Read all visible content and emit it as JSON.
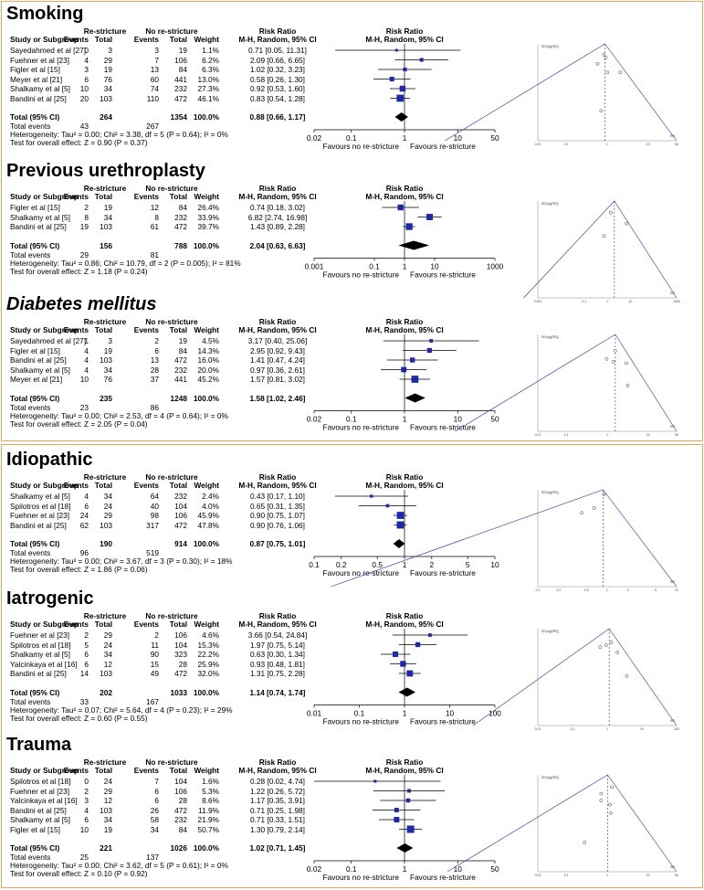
{
  "headers": {
    "study": "Study or Subgroup",
    "re_group": "Re-stricture",
    "no_group": "No re-stricture",
    "events": "Events",
    "total": "Total",
    "weight": "Weight",
    "rr_title": "Risk Ratio",
    "rr_method": "M-H, Random, 95% CI",
    "total_row": "Total (95% CI)",
    "total_events": "Total events",
    "favours_left": "Favours no re-stricture",
    "favours_right": "Favours re-stricture",
    "funnel_ylabel": "SE(log[RR])",
    "funnel_xlabel": "RR"
  },
  "colors": {
    "study_box": "#1f28a8",
    "diamond": "#000000",
    "frame": "#e7a65a",
    "funnel_line": "#2233aa"
  },
  "chart_data": [
    {
      "type": "forest",
      "title": "Smoking",
      "xscale": "log",
      "xticks": [
        "0.02",
        "0.1",
        "1",
        "10",
        "50"
      ],
      "studies": [
        {
          "study": "Sayedahmed et al [27]",
          "re_events": "0",
          "re_total": "3",
          "no_events": "3",
          "no_total": "19",
          "weight": "1.1%",
          "rr_text": "0.71 [0.05, 11.31]",
          "rr": 0.71,
          "lo": 0.05,
          "hi": 11.31
        },
        {
          "study": "Fuehner et al [23]",
          "re_events": "4",
          "re_total": "29",
          "no_events": "7",
          "no_total": "106",
          "weight": "6.2%",
          "rr_text": "2.09 [0.66, 6.65]",
          "rr": 2.09,
          "lo": 0.66,
          "hi": 6.65
        },
        {
          "study": "Figler et al [15]",
          "re_events": "3",
          "re_total": "19",
          "no_events": "13",
          "no_total": "84",
          "weight": "6.3%",
          "rr_text": "1.02 [0.32, 3.23]",
          "rr": 1.02,
          "lo": 0.32,
          "hi": 3.23
        },
        {
          "study": "Meyer et al [21]",
          "re_events": "6",
          "re_total": "76",
          "no_events": "60",
          "no_total": "441",
          "weight": "13.0%",
          "rr_text": "0.58 [0.26, 1.30]",
          "rr": 0.58,
          "lo": 0.26,
          "hi": 1.3
        },
        {
          "study": "Shalkamy et al [5]",
          "re_events": "10",
          "re_total": "34",
          "no_events": "74",
          "no_total": "232",
          "weight": "27.3%",
          "rr_text": "0.92 [0.53, 1.60]",
          "rr": 0.92,
          "lo": 0.53,
          "hi": 1.6
        },
        {
          "study": "Bandini et al [25]",
          "re_events": "20",
          "re_total": "103",
          "no_events": "110",
          "no_total": "472",
          "weight": "46.1%",
          "rr_text": "0.83 [0.54, 1.28]",
          "rr": 0.83,
          "lo": 0.54,
          "hi": 1.28
        }
      ],
      "total": {
        "re_total": "264",
        "no_total": "1354",
        "weight": "100.0%",
        "rr_text": "0.88 [0.66, 1.17]",
        "rr": 0.88,
        "lo": 0.66,
        "hi": 1.17
      },
      "total_events": {
        "re": "43",
        "no": "267"
      },
      "heterogeneity": "Heterogeneity: Tau² = 0.00; Chi² = 3.38, df = 5 (P = 0.64); I² = 0%",
      "overall_effect": "Test for overall effect: Z = 0.90 (P = 0.37)"
    },
    {
      "type": "forest",
      "title": "Previous urethroplasty",
      "xscale": "log",
      "xticks": [
        "0.001",
        "0.1",
        "1",
        "10",
        "1000"
      ],
      "studies": [
        {
          "study": "Figler et al [15]",
          "re_events": "2",
          "re_total": "19",
          "no_events": "12",
          "no_total": "84",
          "weight": "26.4%",
          "rr_text": "0.74 [0.18, 3.02]",
          "rr": 0.74,
          "lo": 0.18,
          "hi": 3.02
        },
        {
          "study": "Shalkamy et al [5]",
          "re_events": "8",
          "re_total": "34",
          "no_events": "8",
          "no_total": "232",
          "weight": "33.9%",
          "rr_text": "6.82 [2.74, 16.98]",
          "rr": 6.82,
          "lo": 2.74,
          "hi": 16.98
        },
        {
          "study": "Bandini et al [25]",
          "re_events": "19",
          "re_total": "103",
          "no_events": "61",
          "no_total": "472",
          "weight": "39.7%",
          "rr_text": "1.43 [0.89, 2.28]",
          "rr": 1.43,
          "lo": 0.89,
          "hi": 2.28
        }
      ],
      "total": {
        "re_total": "156",
        "no_total": "788",
        "weight": "100.0%",
        "rr_text": "2.04 [0.63, 6.63]",
        "rr": 2.04,
        "lo": 0.63,
        "hi": 6.63
      },
      "total_events": {
        "re": "29",
        "no": "81"
      },
      "heterogeneity": "Heterogeneity: Tau² = 0.86; Chi² = 10.79, df = 2 (P = 0.005); I² = 81%",
      "overall_effect": "Test for overall effect: Z = 1.18 (P = 0.24)"
    },
    {
      "type": "forest",
      "title": "Diabetes mellitus",
      "xscale": "log",
      "xticks": [
        "0.02",
        "0.1",
        "1",
        "10",
        "50"
      ],
      "studies": [
        {
          "study": "Sayedahmed et al [27]",
          "re_events": "1",
          "re_total": "3",
          "no_events": "2",
          "no_total": "19",
          "weight": "4.5%",
          "rr_text": "3.17 [0.40, 25.06]",
          "rr": 3.17,
          "lo": 0.4,
          "hi": 25.06
        },
        {
          "study": "Figler et al [15]",
          "re_events": "4",
          "re_total": "19",
          "no_events": "6",
          "no_total": "84",
          "weight": "14.3%",
          "rr_text": "2.95 [0.92, 9.43]",
          "rr": 2.95,
          "lo": 0.92,
          "hi": 9.43
        },
        {
          "study": "Bandini et al [25]",
          "re_events": "4",
          "re_total": "103",
          "no_events": "13",
          "no_total": "472",
          "weight": "16.0%",
          "rr_text": "1.41 [0.47, 4.24]",
          "rr": 1.41,
          "lo": 0.47,
          "hi": 4.24
        },
        {
          "study": "Shalkamy et al [5]",
          "re_events": "4",
          "re_total": "34",
          "no_events": "28",
          "no_total": "232",
          "weight": "20.0%",
          "rr_text": "0.97 [0.36, 2.61]",
          "rr": 0.97,
          "lo": 0.36,
          "hi": 2.61
        },
        {
          "study": "Meyer et al [21]",
          "re_events": "10",
          "re_total": "76",
          "no_events": "37",
          "no_total": "441",
          "weight": "45.2%",
          "rr_text": "1.57 [0.81, 3.02]",
          "rr": 1.57,
          "lo": 0.81,
          "hi": 3.02
        }
      ],
      "total": {
        "re_total": "235",
        "no_total": "1248",
        "weight": "100.0%",
        "rr_text": "1.58 [1.02, 2.46]",
        "rr": 1.58,
        "lo": 1.02,
        "hi": 2.46
      },
      "total_events": {
        "re": "23",
        "no": "86"
      },
      "heterogeneity": "Heterogeneity: Tau² = 0.00; Chi² = 2.53, df = 4 (P = 0.64); I² = 0%",
      "overall_effect": "Test for overall effect: Z = 2.05 (P = 0.04)"
    },
    {
      "type": "forest",
      "title": "Idiopathic",
      "xscale": "log",
      "xticks": [
        "0.1",
        "0.2",
        "0.5",
        "1",
        "2",
        "5",
        "10"
      ],
      "studies": [
        {
          "study": "Shalkamy et al [5]",
          "re_events": "4",
          "re_total": "34",
          "no_events": "64",
          "no_total": "232",
          "weight": "2.4%",
          "rr_text": "0.43 [0.17, 1.10]",
          "rr": 0.43,
          "lo": 0.17,
          "hi": 1.1
        },
        {
          "study": "Spilotros et al [18]",
          "re_events": "6",
          "re_total": "24",
          "no_events": "40",
          "no_total": "104",
          "weight": "4.0%",
          "rr_text": "0.65 [0.31, 1.35]",
          "rr": 0.65,
          "lo": 0.31,
          "hi": 1.35
        },
        {
          "study": "Fuehner et al [23]",
          "re_events": "24",
          "re_total": "29",
          "no_events": "98",
          "no_total": "106",
          "weight": "45.9%",
          "rr_text": "0.90 [0.75, 1.07]",
          "rr": 0.9,
          "lo": 0.75,
          "hi": 1.07
        },
        {
          "study": "Bandini et al [25]",
          "re_events": "62",
          "re_total": "103",
          "no_events": "317",
          "no_total": "472",
          "weight": "47.8%",
          "rr_text": "0.90 [0.76, 1.06]",
          "rr": 0.9,
          "lo": 0.76,
          "hi": 1.06
        }
      ],
      "total": {
        "re_total": "190",
        "no_total": "914",
        "weight": "100.0%",
        "rr_text": "0.87 [0.75, 1.01]",
        "rr": 0.87,
        "lo": 0.75,
        "hi": 1.01
      },
      "total_events": {
        "re": "96",
        "no": "519"
      },
      "heterogeneity": "Heterogeneity: Tau² = 0.00; Chi² = 3.67, df = 3 (P = 0.30); I² = 18%",
      "overall_effect": "Test for overall effect: Z = 1.86 (P = 0.06)"
    },
    {
      "type": "forest",
      "title": "Iatrogenic",
      "xscale": "log",
      "xticks": [
        "0.01",
        "0.1",
        "1",
        "10",
        "100"
      ],
      "studies": [
        {
          "study": "Fuehner et al [23]",
          "re_events": "2",
          "re_total": "29",
          "no_events": "2",
          "no_total": "106",
          "weight": "4.6%",
          "rr_text": "3.66 [0.54, 24.84]",
          "rr": 3.66,
          "lo": 0.54,
          "hi": 24.84
        },
        {
          "study": "Spilotros et al [18]",
          "re_events": "5",
          "re_total": "24",
          "no_events": "11",
          "no_total": "104",
          "weight": "15.3%",
          "rr_text": "1.97 [0.75, 5.14]",
          "rr": 1.97,
          "lo": 0.75,
          "hi": 5.14
        },
        {
          "study": "Shalkamy et al [5]",
          "re_events": "6",
          "re_total": "34",
          "no_events": "90",
          "no_total": "323",
          "weight": "22.2%",
          "rr_text": "0.63 [0.30, 1.34]",
          "rr": 0.63,
          "lo": 0.3,
          "hi": 1.34
        },
        {
          "study": "Yalcinkaya et al [16]",
          "re_events": "6",
          "re_total": "12",
          "no_events": "15",
          "no_total": "28",
          "weight": "25.9%",
          "rr_text": "0.93 [0.48, 1.81]",
          "rr": 0.93,
          "lo": 0.48,
          "hi": 1.81
        },
        {
          "study": "Bandini et al [25]",
          "re_events": "14",
          "re_total": "103",
          "no_events": "49",
          "no_total": "472",
          "weight": "32.0%",
          "rr_text": "1.31 [0.75, 2.28]",
          "rr": 1.31,
          "lo": 0.75,
          "hi": 2.28
        }
      ],
      "total": {
        "re_total": "202",
        "no_total": "1033",
        "weight": "100.0%",
        "rr_text": "1.14 [0.74, 1.74]",
        "rr": 1.14,
        "lo": 0.74,
        "hi": 1.74
      },
      "total_events": {
        "re": "33",
        "no": "167"
      },
      "heterogeneity": "Heterogeneity: Tau² = 0.07; Chi² = 5.64, df = 4 (P = 0.23); I² = 29%",
      "overall_effect": "Test for overall effect: Z = 0.60 (P = 0.55)"
    },
    {
      "type": "forest",
      "title": "Trauma",
      "xscale": "log",
      "xticks": [
        "0.02",
        "0.1",
        "1",
        "10",
        "50"
      ],
      "studies": [
        {
          "study": "Spilotros et al [18]",
          "re_events": "0",
          "re_total": "24",
          "no_events": "7",
          "no_total": "104",
          "weight": "1.6%",
          "rr_text": "0.28 [0.02, 4.74]",
          "rr": 0.28,
          "lo": 0.02,
          "hi": 4.74
        },
        {
          "study": "Fuehner et al [23]",
          "re_events": "2",
          "re_total": "29",
          "no_events": "6",
          "no_total": "106",
          "weight": "5.3%",
          "rr_text": "1.22 [0.26, 5.72]",
          "rr": 1.22,
          "lo": 0.26,
          "hi": 5.72
        },
        {
          "study": "Yalcinkaya et al [16]",
          "re_events": "3",
          "re_total": "12",
          "no_events": "6",
          "no_total": "28",
          "weight": "8.6%",
          "rr_text": "1.17 [0.35, 3.91]",
          "rr": 1.17,
          "lo": 0.35,
          "hi": 3.91
        },
        {
          "study": "Bandini et al [25]",
          "re_events": "4",
          "re_total": "103",
          "no_events": "26",
          "no_total": "472",
          "weight": "11.9%",
          "rr_text": "0.71 [0.25, 1.98]",
          "rr": 0.71,
          "lo": 0.25,
          "hi": 1.98
        },
        {
          "study": "Shalkamy et al [5]",
          "re_events": "6",
          "re_total": "34",
          "no_events": "58",
          "no_total": "232",
          "weight": "21.9%",
          "rr_text": "0.71 [0.33, 1.51]",
          "rr": 0.71,
          "lo": 0.33,
          "hi": 1.51
        },
        {
          "study": "Figler et al [15]",
          "re_events": "10",
          "re_total": "19",
          "no_events": "34",
          "no_total": "84",
          "weight": "50.7%",
          "rr_text": "1.30 [0.79, 2.14]",
          "rr": 1.3,
          "lo": 0.79,
          "hi": 2.14
        }
      ],
      "total": {
        "re_total": "221",
        "no_total": "1026",
        "weight": "100.0%",
        "rr_text": "1.02 [0.71, 1.45]",
        "rr": 1.02,
        "lo": 0.71,
        "hi": 1.45
      },
      "total_events": {
        "re": "25",
        "no": "137"
      },
      "heterogeneity": "Heterogeneity: Tau² = 0.00; Chi² = 3.62, df = 5 (P = 0.61); I² = 0%",
      "overall_effect": "Test for overall effect: Z = 0.10 (P = 0.92)"
    }
  ]
}
